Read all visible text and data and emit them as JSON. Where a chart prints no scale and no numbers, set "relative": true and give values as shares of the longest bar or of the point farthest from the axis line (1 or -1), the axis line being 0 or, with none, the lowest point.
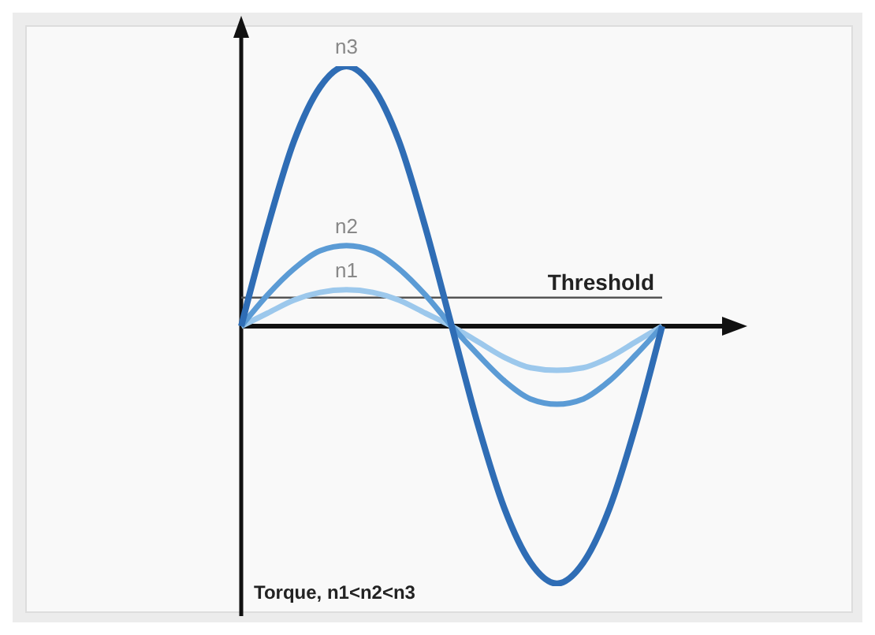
{
  "chart_data": {
    "type": "line",
    "relative": true,
    "categories": [
      null,
      null,
      null,
      null,
      null,
      null,
      null,
      null,
      null,
      null,
      null,
      null,
      null,
      null,
      null,
      null,
      null
    ],
    "series": [
      {
        "name": "n1",
        "color": "#9cc8ec",
        "values": [
          0,
          0.05,
          0.1,
          0.13,
          0.14,
          0.13,
          0.1,
          0.05,
          0,
          -0.06,
          -0.12,
          -0.16,
          -0.17,
          -0.16,
          -0.12,
          -0.06,
          0
        ]
      },
      {
        "name": "n2",
        "color": "#5b9bd5",
        "values": [
          0,
          0.12,
          0.22,
          0.29,
          0.31,
          0.29,
          0.22,
          0.12,
          0,
          -0.11,
          -0.21,
          -0.28,
          -0.3,
          -0.28,
          -0.21,
          -0.11,
          0
        ]
      },
      {
        "name": "n3",
        "color": "#2f6db5",
        "values": [
          0,
          0.38,
          0.71,
          0.92,
          1,
          0.92,
          0.71,
          0.38,
          0,
          -0.38,
          -0.7,
          -0.91,
          -0.99,
          -0.91,
          -0.7,
          -0.38,
          0
        ]
      }
    ],
    "ref_lines": [
      {
        "axis": "y",
        "value": 0.11,
        "label": "Threshold",
        "color": "#555555"
      }
    ],
    "annotations": [
      "Torque, n1<n2<n3"
    ],
    "marker": "none",
    "grid": false,
    "legend": false
  }
}
